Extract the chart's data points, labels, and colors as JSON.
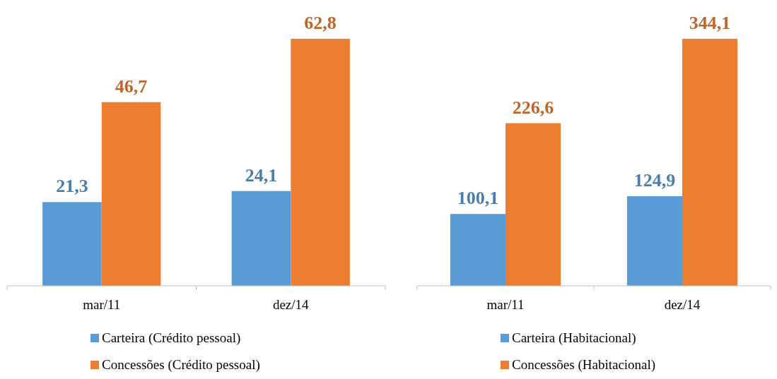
{
  "chart_data": [
    {
      "type": "bar",
      "categories": [
        "mar/11",
        "dez/14"
      ],
      "series": [
        {
          "name": "Carteira (Crédito pessoal)",
          "color": "#5b9bd5",
          "values": [
            21.3,
            24.1
          ],
          "value_labels": [
            "21,3",
            "24,1"
          ]
        },
        {
          "name": "Concessões (Crédito pessoal)",
          "color": "#ed7d31",
          "values": [
            46.7,
            62.8
          ],
          "value_labels": [
            "46,7",
            "62,8"
          ]
        }
      ],
      "legend": "bottom"
    },
    {
      "type": "bar",
      "categories": [
        "mar/11",
        "dez/14"
      ],
      "series": [
        {
          "name": "Carteira (Habitacional)",
          "color": "#5b9bd5",
          "values": [
            100.1,
            124.9
          ],
          "value_labels": [
            "100,1",
            "124,9"
          ]
        },
        {
          "name": "Concessões (Habitacional)",
          "color": "#ed7d31",
          "values": [
            226.6,
            344.1
          ],
          "value_labels": [
            "226,6",
            "344,1"
          ]
        }
      ],
      "legend": "bottom"
    }
  ]
}
